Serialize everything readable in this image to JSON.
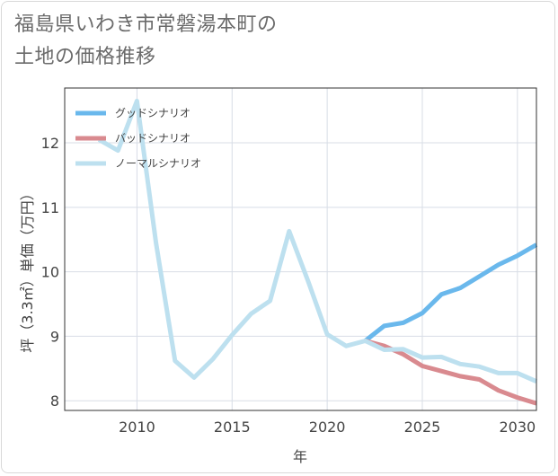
{
  "title": {
    "line1": "福島県いわき市常磐湯本町の",
    "line2": "土地の価格推移"
  },
  "colors": {
    "good": "#6ab8ec",
    "bad": "#d98a8f",
    "normal": "#bde0ef",
    "grid": "#d8dde6",
    "frame": "#333333"
  },
  "chart_data": {
    "type": "line",
    "xlabel": "年",
    "ylabel": "坪（3.3㎡）単価（万円）",
    "xlim": [
      2006.2,
      2031
    ],
    "ylim": [
      7.85,
      12.85
    ],
    "x_ticks": [
      2010,
      2015,
      2020,
      2025,
      2030
    ],
    "y_ticks": [
      8,
      9,
      10,
      11,
      12
    ],
    "legend_position": "top-left",
    "series": [
      {
        "name": "グッドシナリオ",
        "color_key": "good",
        "x": [
          2022,
          2023,
          2024,
          2025,
          2026,
          2027,
          2028,
          2029,
          2030,
          2031
        ],
        "y": [
          8.93,
          9.16,
          9.21,
          9.36,
          9.65,
          9.75,
          9.93,
          10.11,
          10.25,
          10.42
        ]
      },
      {
        "name": "バッドシナリオ",
        "color_key": "bad",
        "x": [
          2022,
          2023,
          2024,
          2025,
          2026,
          2027,
          2028,
          2029,
          2030,
          2031
        ],
        "y": [
          8.93,
          8.85,
          8.72,
          8.54,
          8.46,
          8.38,
          8.33,
          8.16,
          8.05,
          7.96
        ]
      },
      {
        "name": "ノーマルシナリオ",
        "color_key": "normal",
        "x": [
          2008,
          2009,
          2010,
          2011,
          2012,
          2013,
          2014,
          2015,
          2016,
          2017,
          2018,
          2019,
          2020,
          2021,
          2022,
          2023,
          2024,
          2025,
          2026,
          2027,
          2028,
          2029,
          2030,
          2031
        ],
        "y": [
          12.05,
          11.88,
          12.65,
          10.45,
          8.62,
          8.36,
          8.65,
          9.02,
          9.35,
          9.55,
          10.63,
          9.85,
          9.03,
          8.85,
          8.93,
          8.79,
          8.8,
          8.67,
          8.68,
          8.57,
          8.53,
          8.43,
          8.43,
          8.3
        ]
      }
    ]
  }
}
